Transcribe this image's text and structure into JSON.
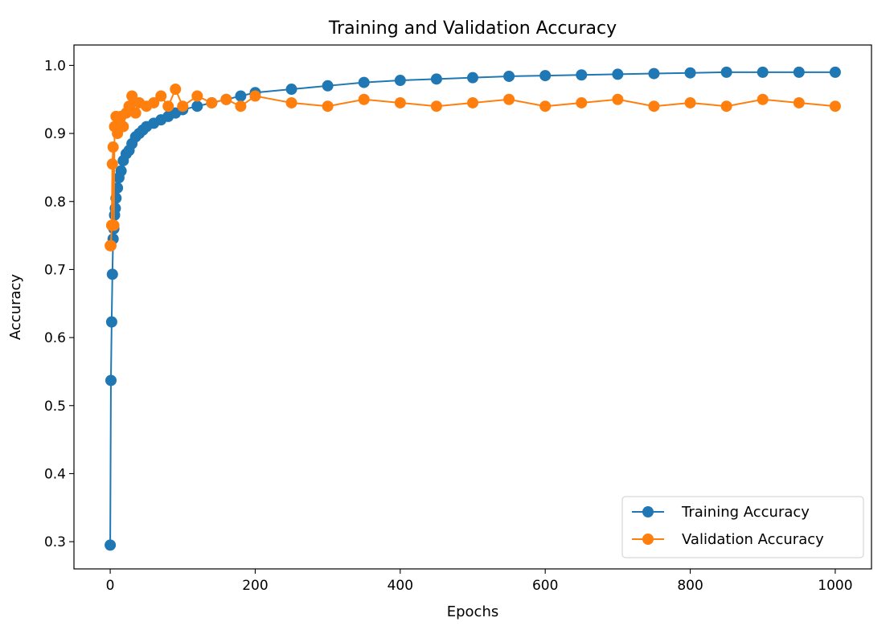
{
  "chart_data": {
    "type": "line",
    "title": "Training and Validation Accuracy",
    "xlabel": "Epochs",
    "ylabel": "Accuracy",
    "xlim": [
      -50,
      1050
    ],
    "ylim": [
      0.26,
      1.03
    ],
    "xticks": [
      0,
      200,
      400,
      600,
      800,
      1000
    ],
    "yticks": [
      0.3,
      0.4,
      0.5,
      0.6,
      0.7,
      0.8,
      0.9,
      1.0
    ],
    "xtick_labels": [
      "0",
      "200",
      "400",
      "600",
      "800",
      "1000"
    ],
    "ytick_labels": [
      "0.3",
      "0.4",
      "0.5",
      "0.6",
      "0.7",
      "0.8",
      "0.9",
      "1.0"
    ],
    "grid": false,
    "legend_position": "lower-right",
    "marker": "circle",
    "series": [
      {
        "name": "Training Accuracy",
        "color": "#1f77b4",
        "x": [
          0,
          1,
          2,
          3,
          4,
          5,
          6,
          7,
          8,
          10,
          12,
          15,
          18,
          22,
          26,
          30,
          35,
          40,
          45,
          50,
          60,
          70,
          80,
          90,
          100,
          120,
          140,
          160,
          180,
          200,
          250,
          300,
          350,
          400,
          450,
          500,
          550,
          600,
          650,
          700,
          750,
          800,
          850,
          900,
          950,
          1000
        ],
        "values": [
          0.295,
          0.537,
          0.623,
          0.693,
          0.745,
          0.76,
          0.78,
          0.79,
          0.805,
          0.82,
          0.835,
          0.845,
          0.86,
          0.87,
          0.875,
          0.885,
          0.895,
          0.9,
          0.905,
          0.91,
          0.915,
          0.92,
          0.925,
          0.93,
          0.935,
          0.94,
          0.945,
          0.95,
          0.955,
          0.96,
          0.965,
          0.97,
          0.975,
          0.978,
          0.98,
          0.982,
          0.984,
          0.985,
          0.986,
          0.987,
          0.988,
          0.989,
          0.99,
          0.99,
          0.99,
          0.99
        ]
      },
      {
        "name": "Validation Accuracy",
        "color": "#ff7f0e",
        "x": [
          0,
          1,
          2,
          3,
          4,
          5,
          6,
          8,
          10,
          12,
          15,
          18,
          22,
          26,
          30,
          35,
          40,
          50,
          60,
          70,
          80,
          90,
          100,
          120,
          140,
          160,
          180,
          200,
          250,
          300,
          350,
          400,
          450,
          500,
          550,
          600,
          650,
          700,
          750,
          800,
          850,
          900,
          950,
          1000
        ],
        "values": [
          0.735,
          0.735,
          0.765,
          0.855,
          0.88,
          0.765,
          0.91,
          0.925,
          0.9,
          0.915,
          0.925,
          0.91,
          0.93,
          0.94,
          0.955,
          0.93,
          0.945,
          0.94,
          0.945,
          0.955,
          0.94,
          0.965,
          0.94,
          0.955,
          0.945,
          0.95,
          0.94,
          0.955,
          0.945,
          0.94,
          0.95,
          0.945,
          0.94,
          0.945,
          0.95,
          0.94,
          0.945,
          0.95,
          0.94,
          0.945,
          0.94,
          0.95,
          0.945,
          0.94
        ]
      }
    ]
  }
}
